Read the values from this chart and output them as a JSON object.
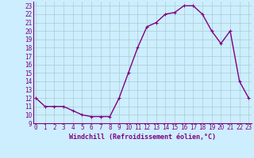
{
  "x": [
    0,
    1,
    2,
    3,
    4,
    5,
    6,
    7,
    8,
    9,
    10,
    11,
    12,
    13,
    14,
    15,
    16,
    17,
    18,
    19,
    20,
    21,
    22,
    23
  ],
  "y": [
    12,
    11,
    11,
    11,
    10.5,
    10,
    9.8,
    9.8,
    9.8,
    12,
    15,
    18,
    20.5,
    21,
    22,
    22.2,
    23,
    23,
    22,
    20,
    18.5,
    20,
    14,
    12
  ],
  "line_color": "#800080",
  "marker": "+",
  "marker_size": 3,
  "bg_color": "#cceeff",
  "grid_color": "#aacccc",
  "xlabel": "Windchill (Refroidissement éolien,°C)",
  "xlabel_fontsize": 6,
  "ylabel_ticks": [
    9,
    10,
    11,
    12,
    13,
    14,
    15,
    16,
    17,
    18,
    19,
    20,
    21,
    22,
    23
  ],
  "xticks": [
    0,
    1,
    2,
    3,
    4,
    5,
    6,
    7,
    8,
    9,
    10,
    11,
    12,
    13,
    14,
    15,
    16,
    17,
    18,
    19,
    20,
    21,
    22,
    23
  ],
  "ylim": [
    9,
    23.5
  ],
  "xlim": [
    -0.3,
    23.3
  ],
  "tick_fontsize": 5.5,
  "line_width": 1.0
}
